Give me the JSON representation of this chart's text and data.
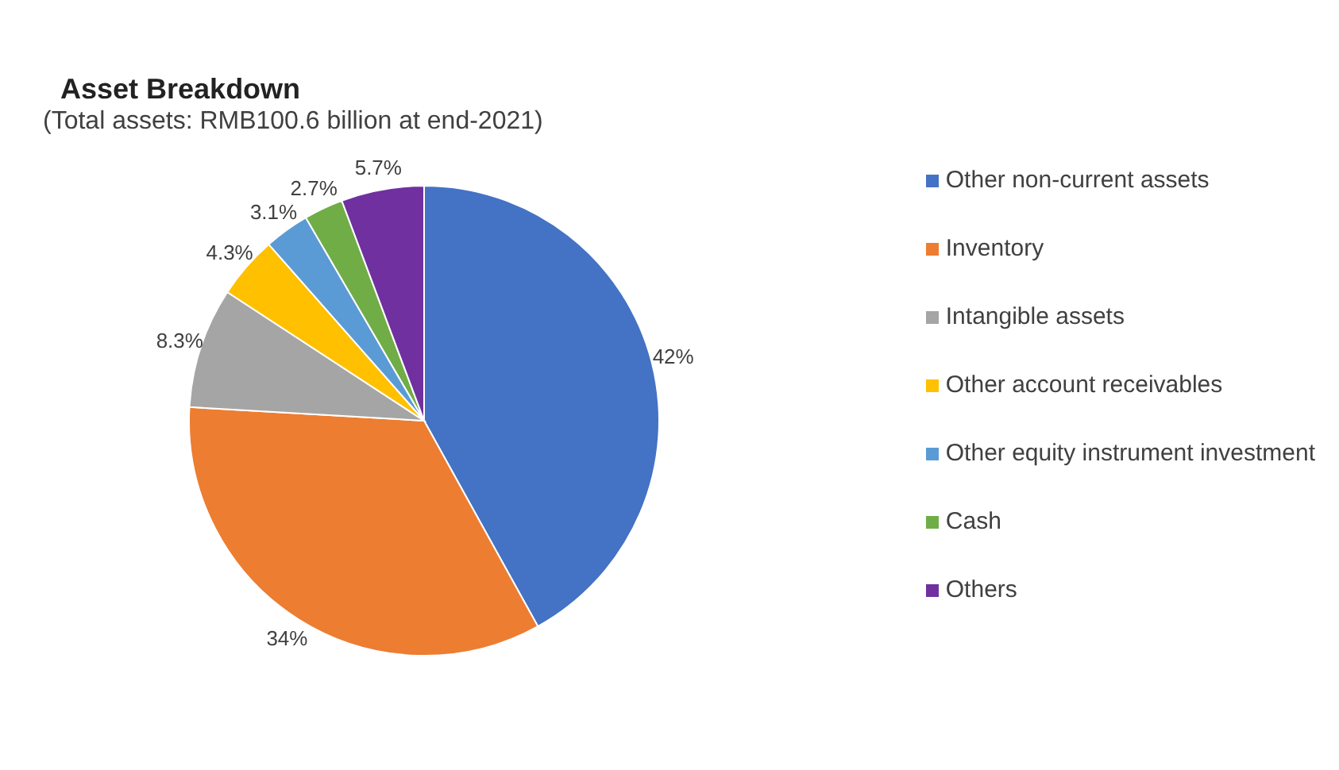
{
  "chart_data": {
    "type": "pie",
    "title": "Asset Breakdown",
    "subtitle": "(Total assets: RMB100.6 billion at end-2021)",
    "categories": [
      "Other non-current assets",
      "Inventory",
      "Intangible assets",
      "Other account receivables",
      "Other equity instrument investment",
      "Cash",
      "Others"
    ],
    "values": [
      42,
      34,
      8.3,
      4.3,
      3.1,
      2.7,
      5.7
    ],
    "value_labels": [
      "42%",
      "34%",
      "8.3%",
      "4.3%",
      "3.1%",
      "2.7%",
      "5.7%"
    ],
    "colors": [
      "#4472c4",
      "#ed7d31",
      "#a5a5a5",
      "#ffc000",
      "#5b9bd5",
      "#70ad47",
      "#7030a0"
    ],
    "legend": "right"
  }
}
